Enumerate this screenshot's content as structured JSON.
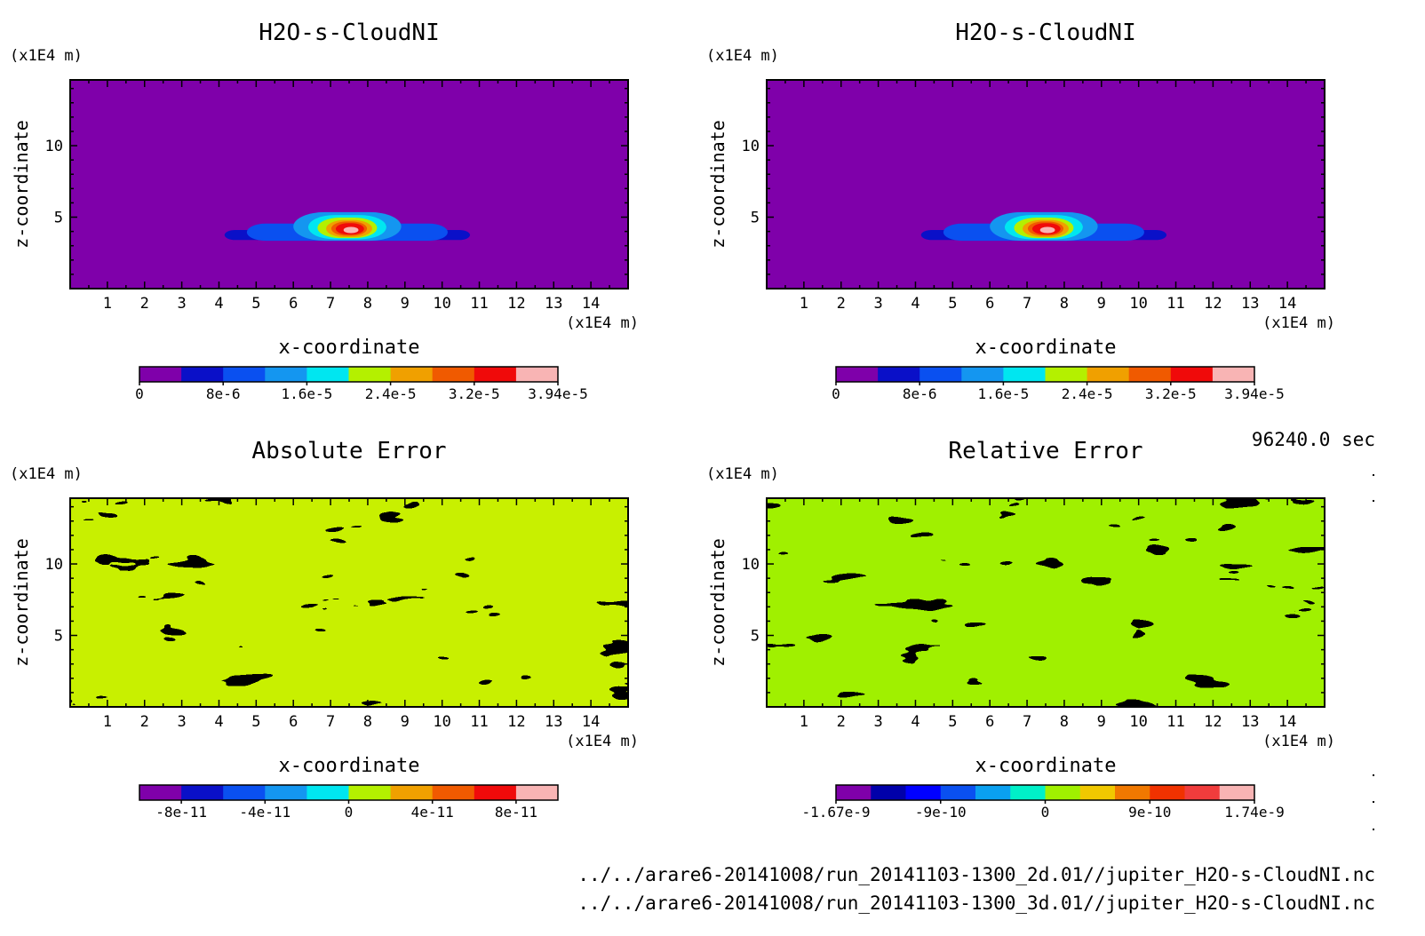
{
  "panels": [
    {
      "id": "tl",
      "type": "heatmap",
      "title": "H2O-s-CloudNI",
      "xlabel": "x-coordinate",
      "ylabel": "z-coordinate",
      "x_unit": "(x1E4 m)",
      "y_unit": "(x1E4 m)",
      "xlim": [
        0,
        15
      ],
      "ylim": [
        0,
        14.6
      ],
      "xticks": [
        1,
        2,
        3,
        4,
        5,
        6,
        7,
        8,
        9,
        10,
        11,
        12,
        13,
        14
      ],
      "yticks": [
        5,
        10
      ],
      "background": "#7f00aa",
      "feature": "cloud",
      "colorbar": {
        "colors": [
          "#7f00aa",
          "#0a10c8",
          "#0a50f0",
          "#1496f0",
          "#00e6f0",
          "#b4f000",
          "#f0a000",
          "#f05a00",
          "#f00a0a",
          "#f8b4b4"
        ],
        "tick_labels": [
          "0",
          "8e-6",
          "1.6e-5",
          "2.4e-5",
          "3.2e-5",
          "3.94e-5"
        ]
      }
    },
    {
      "id": "tr",
      "type": "heatmap",
      "title": "H2O-s-CloudNI",
      "xlabel": "x-coordinate",
      "ylabel": "z-coordinate",
      "x_unit": "(x1E4 m)",
      "y_unit": "(x1E4 m)",
      "xlim": [
        0,
        15
      ],
      "ylim": [
        0,
        14.6
      ],
      "xticks": [
        1,
        2,
        3,
        4,
        5,
        6,
        7,
        8,
        9,
        10,
        11,
        12,
        13,
        14
      ],
      "yticks": [
        5,
        10
      ],
      "background": "#7f00aa",
      "feature": "cloud",
      "colorbar": {
        "colors": [
          "#7f00aa",
          "#0a10c8",
          "#0a50f0",
          "#1496f0",
          "#00e6f0",
          "#b4f000",
          "#f0a000",
          "#f05a00",
          "#f00a0a",
          "#f8b4b4"
        ],
        "tick_labels": [
          "0",
          "8e-6",
          "1.6e-5",
          "2.4e-5",
          "3.2e-5",
          "3.94e-5"
        ]
      }
    },
    {
      "id": "bl",
      "type": "heatmap",
      "title": "Absolute Error",
      "xlabel": "x-coordinate",
      "ylabel": "z-coordinate",
      "x_unit": "(x1E4 m)",
      "y_unit": "(x1E4 m)",
      "xlim": [
        0,
        15
      ],
      "ylim": [
        0,
        14.6
      ],
      "xticks": [
        1,
        2,
        3,
        4,
        5,
        6,
        7,
        8,
        9,
        10,
        11,
        12,
        13,
        14
      ],
      "yticks": [
        5,
        10
      ],
      "background": "#c8f000",
      "noise_color": "#00f0f0",
      "feature": "noise",
      "colorbar": {
        "colors": [
          "#7f00aa",
          "#0a10c8",
          "#0a50f0",
          "#1496f0",
          "#00e6f0",
          "#b4f000",
          "#f0a000",
          "#f05a00",
          "#f00a0a",
          "#f8b4b4"
        ],
        "tick_labels": [
          "-8e-11",
          "-4e-11",
          "0",
          "4e-11",
          "8e-11"
        ]
      }
    },
    {
      "id": "br",
      "type": "heatmap",
      "title": "Relative Error",
      "xlabel": "x-coordinate",
      "ylabel": "z-coordinate",
      "x_unit": "(x1E4 m)",
      "y_unit": "(x1E4 m)",
      "xlim": [
        0,
        15
      ],
      "ylim": [
        0,
        14.6
      ],
      "xticks": [
        1,
        2,
        3,
        4,
        5,
        6,
        7,
        8,
        9,
        10,
        11,
        12,
        13,
        14
      ],
      "yticks": [
        5,
        10
      ],
      "background": "#a0f000",
      "noise_color": "#00f0c8",
      "feature": "noise",
      "colorbar": {
        "colors": [
          "#7f00aa",
          "#0000aa",
          "#0000ff",
          "#0a50f0",
          "#0aa0f0",
          "#00f0c8",
          "#a0f000",
          "#f0c800",
          "#f07800",
          "#f03200",
          "#f03c3c",
          "#f8b4b4"
        ],
        "tick_labels": [
          "-1.67e-9",
          "-9e-10",
          "0",
          "9e-10",
          "1.74e-9"
        ]
      }
    }
  ],
  "time_label": "96240.0 sec",
  "file_paths": [
    "../../arare6-20141008/run_20141103-1300_2d.01//jupiter_H2O-s-CloudNI.nc",
    "../../arare6-20141008/run_20141103-1300_3d.01//jupiter_H2O-s-CloudNI.nc"
  ],
  "chart_data": [
    {
      "type": "heatmap",
      "title": "H2O-s-CloudNI",
      "xlabel": "x-coordinate",
      "ylabel": "z-coordinate",
      "xlim": [
        0,
        15
      ],
      "ylim": [
        0,
        14.6
      ],
      "value_range": [
        0,
        3.94e-05
      ],
      "peak_location": {
        "x": 7.5,
        "z": 4.2
      }
    },
    {
      "type": "heatmap",
      "title": "H2O-s-CloudNI",
      "xlabel": "x-coordinate",
      "ylabel": "z-coordinate",
      "xlim": [
        0,
        15
      ],
      "ylim": [
        0,
        14.6
      ],
      "value_range": [
        0,
        3.94e-05
      ],
      "peak_location": {
        "x": 7.5,
        "z": 4.2
      }
    },
    {
      "type": "heatmap",
      "title": "Absolute Error",
      "xlabel": "x-coordinate",
      "ylabel": "z-coordinate",
      "xlim": [
        0,
        15
      ],
      "ylim": [
        0,
        14.6
      ],
      "value_range": [
        -8e-11,
        8e-11
      ]
    },
    {
      "type": "heatmap",
      "title": "Relative Error",
      "xlabel": "x-coordinate",
      "ylabel": "z-coordinate",
      "xlim": [
        0,
        15
      ],
      "ylim": [
        0,
        14.6
      ],
      "value_range": [
        -1.67e-09,
        1.74e-09
      ]
    }
  ]
}
